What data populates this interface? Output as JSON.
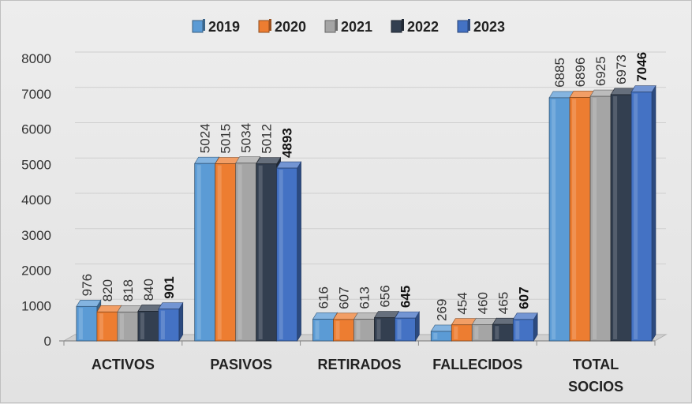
{
  "chart_data": {
    "type": "bar",
    "title": "",
    "xlabel": "",
    "ylabel": "",
    "ylim": [
      0,
      8000
    ],
    "yticks": [
      0,
      1000,
      2000,
      3000,
      4000,
      5000,
      6000,
      7000,
      8000
    ],
    "grid": true,
    "legend_position": "top",
    "categories": [
      [
        "ACTIVOS"
      ],
      [
        "PASIVOS"
      ],
      [
        "RETIRADOS"
      ],
      [
        "FALLECIDOS"
      ],
      [
        "TOTAL",
        "SOCIOS"
      ]
    ],
    "series": [
      {
        "name": "2019",
        "color": "#5b9bd5",
        "values": [
          976,
          5024,
          616,
          269,
          6885
        ]
      },
      {
        "name": "2020",
        "color": "#ed7d31",
        "values": [
          820,
          5015,
          607,
          454,
          6896
        ]
      },
      {
        "name": "2021",
        "color": "#a5a5a5",
        "values": [
          818,
          5034,
          613,
          460,
          6925
        ]
      },
      {
        "name": "2022",
        "color": "#333f50",
        "values": [
          840,
          5012,
          656,
          465,
          6973
        ]
      },
      {
        "name": "2023",
        "color": "#4472c4",
        "values": [
          901,
          4893,
          645,
          607,
          7046
        ]
      }
    ],
    "bold_series": "2023"
  }
}
